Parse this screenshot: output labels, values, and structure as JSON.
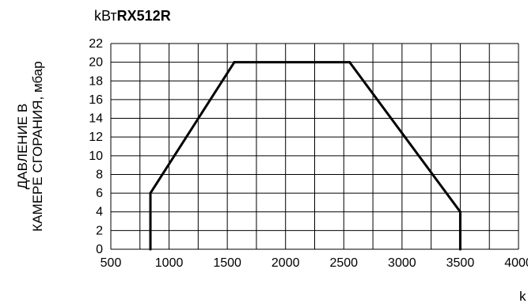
{
  "header": {
    "unit_prefix": "kВт",
    "model": "RX512R"
  },
  "chart_data": {
    "type": "line",
    "title": "RX512R",
    "ylabel_lines": [
      "ДАВЛЕНИЕ В",
      "КАМЕРЕ СГОРАНИЯ, мбар"
    ],
    "xlabel": "k",
    "x_ticks": [
      500,
      1000,
      1500,
      2000,
      2500,
      3000,
      3500,
      4000
    ],
    "x_tick_labels": [
      "500",
      "1000",
      "1500",
      "2000",
      "2500",
      "3000",
      "3500",
      "4000"
    ],
    "y_ticks": [
      0,
      2,
      4,
      6,
      8,
      10,
      12,
      14,
      16,
      18,
      20,
      22
    ],
    "y_tick_labels": [
      "0",
      "2",
      "4",
      "6",
      "8",
      "10",
      "12",
      "14",
      "16",
      "18",
      "20",
      "22"
    ],
    "xlim": [
      500,
      4000
    ],
    "ylim": [
      0,
      22
    ],
    "grid": true,
    "series": [
      {
        "x": [
          840,
          840,
          1560,
          2550,
          3500,
          3500
        ],
        "y": [
          0,
          6,
          20,
          20,
          4,
          0
        ]
      }
    ],
    "colors": {
      "line": "#000000",
      "grid": "#000000"
    }
  }
}
